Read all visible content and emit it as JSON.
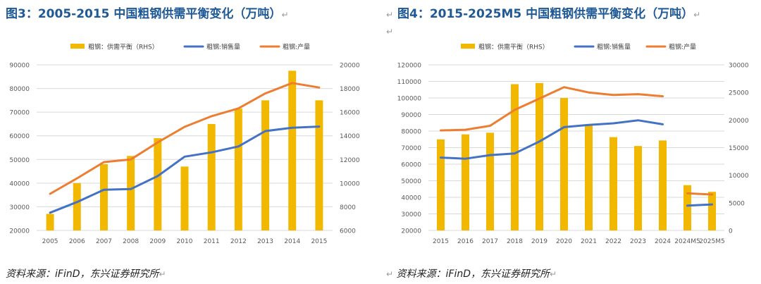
{
  "figures": [
    {
      "title": "图3：2005-2015 中国粗钢供需平衡变化（万吨）",
      "source": "资料来源：iFinD，东兴证券研究所",
      "chart_data": {
        "type": "bar",
        "categories": [
          "2005",
          "2006",
          "2007",
          "2008",
          "2009",
          "2010",
          "2011",
          "2012",
          "2013",
          "2014",
          "2015"
        ],
        "series": [
          {
            "name": "粗钢：供需平衡（RHS）",
            "type": "bar",
            "axis": "right",
            "color": "#f2b800",
            "values": [
              7400,
              10000,
              11600,
              12300,
              13800,
              11400,
              15000,
              16300,
              17000,
              19500,
              17000
            ]
          },
          {
            "name": "粗钢:销售量",
            "type": "line",
            "axis": "left",
            "color": "#4472c4",
            "values": [
              27500,
              32000,
              37200,
              37500,
              43000,
              51200,
              53000,
              55500,
              62000,
              63400,
              63900
            ]
          },
          {
            "name": "粗钢:产量",
            "type": "line",
            "axis": "left",
            "color": "#ed7d31",
            "values": [
              35500,
              42000,
              48900,
              50000,
              57200,
              63800,
              68300,
              71600,
              77900,
              82300,
              80400
            ]
          }
        ],
        "y_left": {
          "min": 20000,
          "max": 90000,
          "step": 10000
        },
        "y_right": {
          "min": 6000,
          "max": 20000,
          "step": 2000
        },
        "grid": true,
        "legend": "top"
      }
    },
    {
      "title": "图4：2015-2025M5 中国粗钢供需平衡变化（万吨）",
      "source": "资料来源：iFinD，东兴证券研究所",
      "chart_data": {
        "type": "bar",
        "categories": [
          "2015",
          "2016",
          "2017",
          "2018",
          "2019",
          "2020",
          "2021",
          "2022",
          "2023",
          "2024",
          "2024M5",
          "2025M5"
        ],
        "series": [
          {
            "name": "粗钢：供需平衡（RHS）",
            "type": "bar",
            "axis": "right",
            "color": "#f2b800",
            "values": [
              16500,
              17400,
              17700,
              26500,
              26700,
              24000,
              19000,
              16900,
              15300,
              16300,
              8200,
              7000
            ]
          },
          {
            "name": "粗钢:销售量",
            "type": "line",
            "axis": "left",
            "color": "#4472c4",
            "values": [
              64000,
              63300,
              65500,
              66500,
              73700,
              82400,
              83700,
              84700,
              86500,
              84100,
              35000,
              35700
            ]
          },
          {
            "name": "粗钢:产量",
            "type": "line",
            "axis": "left",
            "color": "#ed7d31",
            "values": [
              80400,
              80800,
              83200,
              92800,
              99600,
              106500,
              103300,
              101800,
              102300,
              101000,
              42400,
              41700
            ]
          }
        ],
        "line_breaks_after_index": 9,
        "y_left": {
          "min": 20000,
          "max": 120000,
          "step": 10000
        },
        "y_right": {
          "min": 0,
          "max": 30000,
          "step": 5000
        },
        "grid": true,
        "legend": "top"
      }
    }
  ]
}
